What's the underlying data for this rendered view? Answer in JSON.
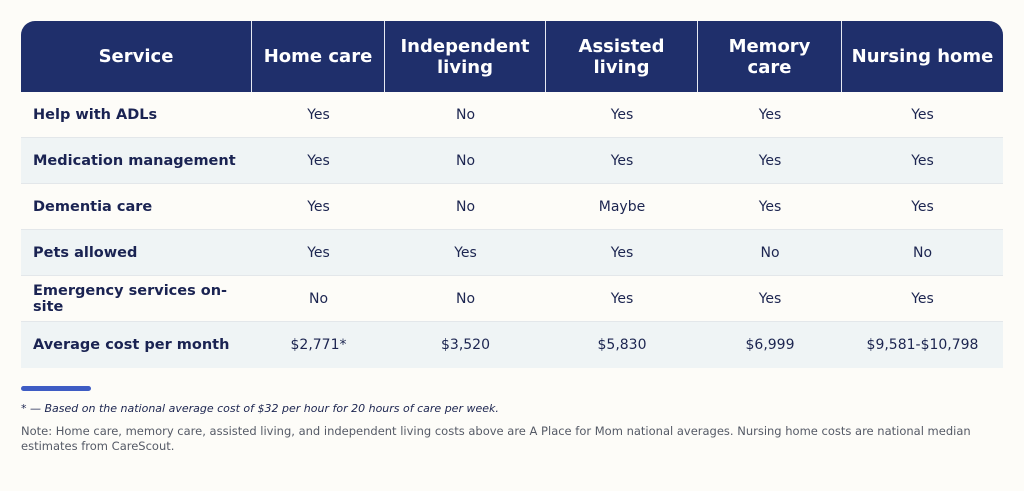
{
  "table": {
    "headers": [
      "Service",
      "Home care",
      "Independent living",
      "Assisted living",
      "Memory care",
      "Nursing home"
    ],
    "rows": [
      {
        "label": "Help with ADLs",
        "cells": [
          "Yes",
          "No",
          "Yes",
          "Yes",
          "Yes"
        ]
      },
      {
        "label": "Medication management",
        "cells": [
          "Yes",
          "No",
          "Yes",
          "Yes",
          "Yes"
        ]
      },
      {
        "label": "Dementia care",
        "cells": [
          "Yes",
          "No",
          "Maybe",
          "Yes",
          "Yes"
        ]
      },
      {
        "label": "Pets allowed",
        "cells": [
          "Yes",
          "Yes",
          "Yes",
          "No",
          "No"
        ]
      },
      {
        "label": "Emergency services on-site",
        "cells": [
          "No",
          "No",
          "Yes",
          "Yes",
          "Yes"
        ]
      },
      {
        "label": "Average cost per month",
        "cells": [
          "$2,771*",
          "$3,520",
          "$5,830",
          "$6,999",
          "$9,581-$10,798"
        ]
      }
    ]
  },
  "footnote": "* — Based on the national average cost of $32 per hour for 20 hours of care per week.",
  "note": "Note: Home care, memory care, assisted living, and independent living costs above are A Place for Mom national averages. Nursing home costs are national median estimates from CareScout.",
  "colors": {
    "header_bg": "#1f2f6b",
    "accent": "#3e5cc4",
    "stripe": "#eff4f5"
  }
}
